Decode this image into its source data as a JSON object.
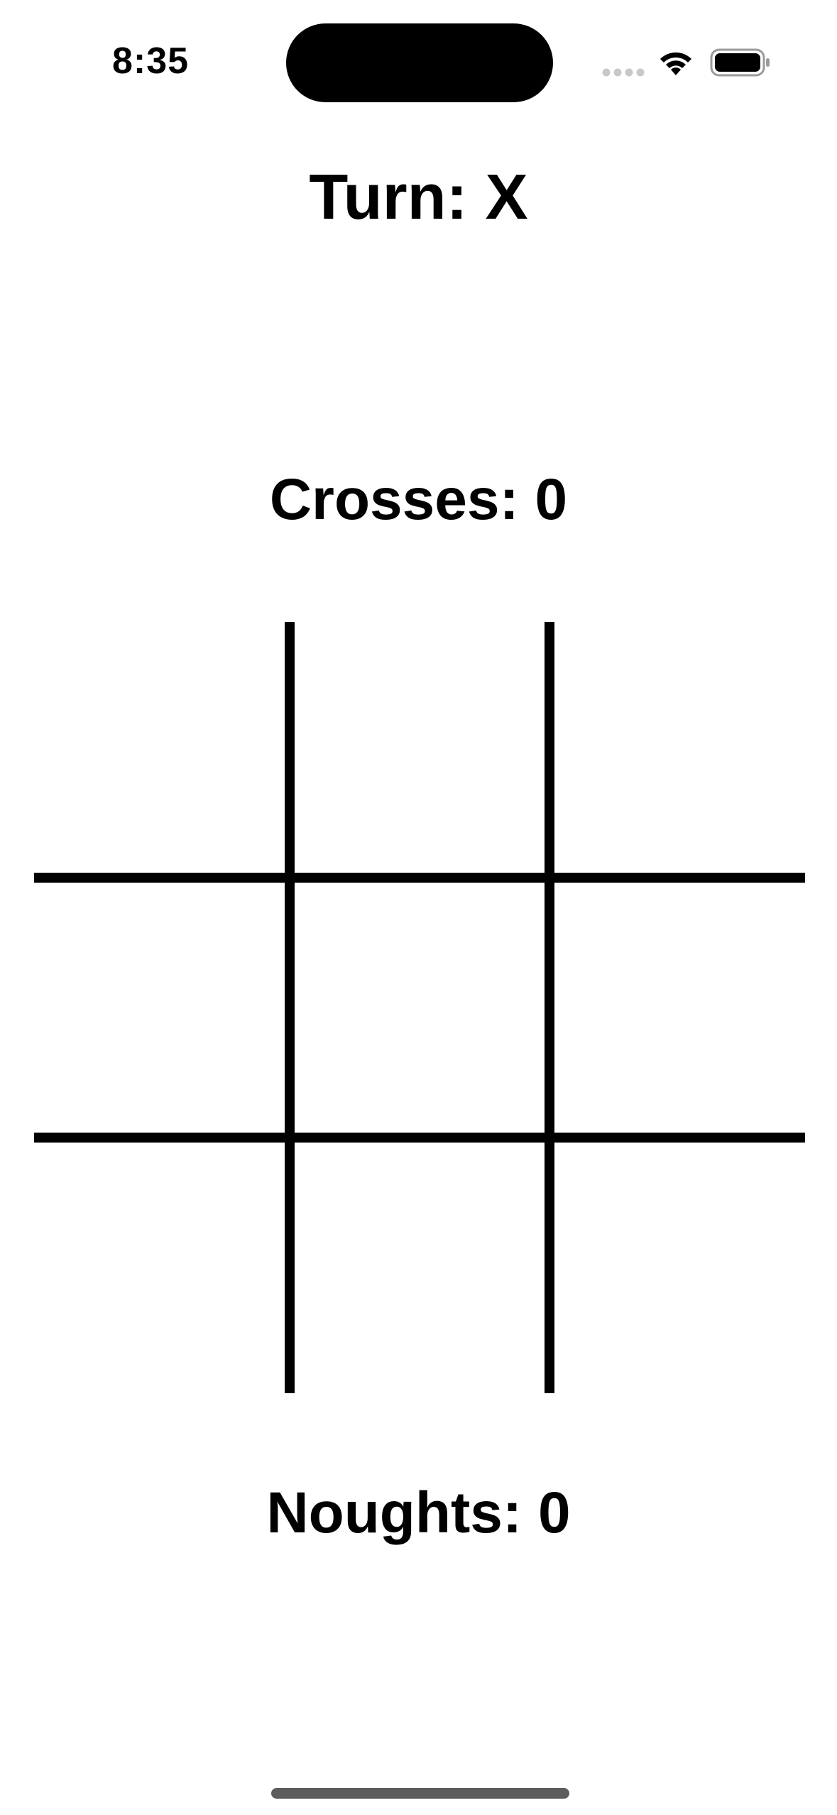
{
  "status_bar": {
    "time": "8:35",
    "icons": [
      "signal-dots-icon",
      "wifi-icon",
      "battery-icon"
    ]
  },
  "game": {
    "turn_label": "Turn: X",
    "crosses_label": "Crosses: 0",
    "noughts_label": "Noughts: 0",
    "board": {
      "cells": [
        "",
        "",
        "",
        "",
        "",
        "",
        "",
        "",
        ""
      ]
    }
  },
  "colors": {
    "background": "#ffffff",
    "foreground": "#000000"
  }
}
